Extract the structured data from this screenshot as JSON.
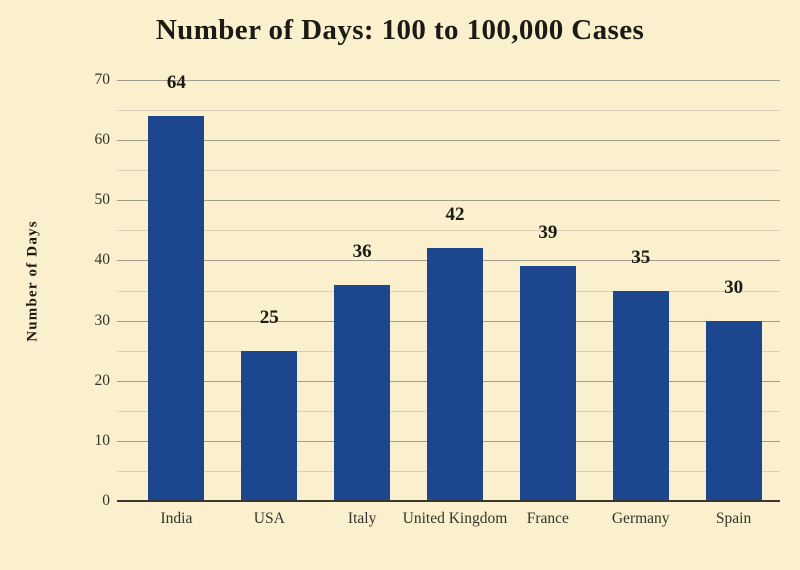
{
  "chart_data": {
    "type": "bar",
    "title": "Number of Days: 100 to 100,000 Cases",
    "ylabel": "Number of Days",
    "xlabel": "",
    "categories": [
      "India",
      "USA",
      "Italy",
      "United Kingdom",
      "France",
      "Germany",
      "Spain"
    ],
    "values": [
      64,
      25,
      36,
      42,
      39,
      35,
      30
    ],
    "ylim": [
      0,
      70
    ],
    "ytick_step": 10,
    "minor_tick_step": 5,
    "grid": true,
    "legend": "none",
    "colors": {
      "background": "#faf0cd",
      "bar": "#1c478e",
      "title_text": "#1c1a15",
      "axis_text": "#35322b",
      "axis_line": "#3a372f",
      "grid_major": "#a29c8a",
      "grid_minor": "#d8d1b8"
    }
  }
}
